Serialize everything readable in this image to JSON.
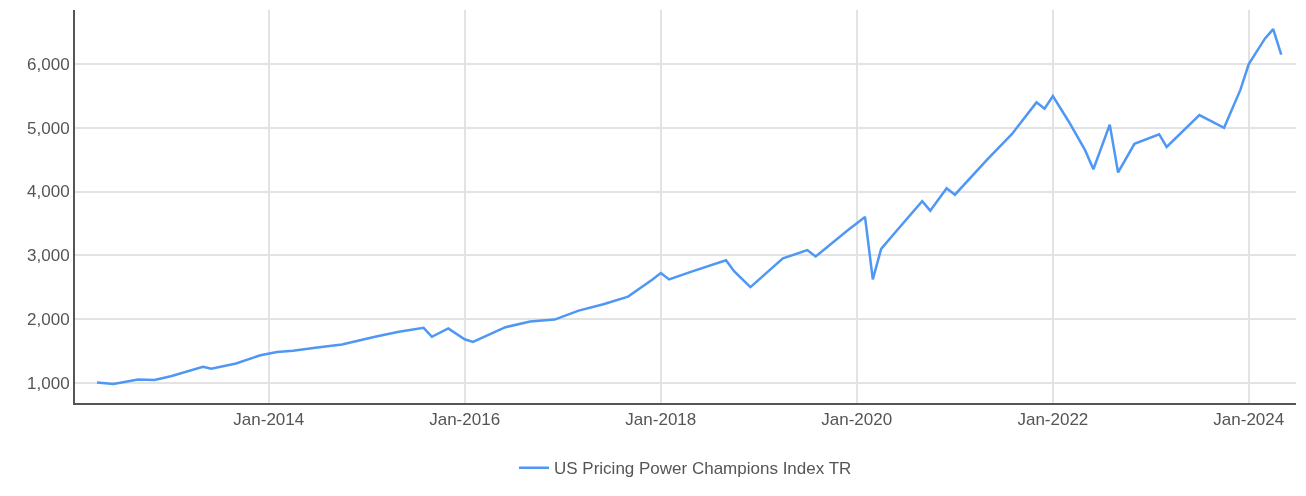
{
  "chart_data": {
    "type": "line",
    "x": [
      "2012-04",
      "2012-06",
      "2012-09",
      "2012-11",
      "2013-01",
      "2013-05",
      "2013-06",
      "2013-09",
      "2013-12",
      "2014-02",
      "2014-04",
      "2014-07",
      "2014-10",
      "2015-02",
      "2015-05",
      "2015-08",
      "2015-09",
      "2015-11",
      "2016-01",
      "2016-02",
      "2016-06",
      "2016-09",
      "2016-12",
      "2017-03",
      "2017-06",
      "2017-09",
      "2017-12",
      "2018-01",
      "2018-02",
      "2018-05",
      "2018-09",
      "2018-10",
      "2018-12",
      "2019-04",
      "2019-07",
      "2019-08",
      "2019-12",
      "2020-02",
      "2020-03",
      "2020-04",
      "2020-06",
      "2020-09",
      "2020-10",
      "2020-12",
      "2021-01",
      "2021-05",
      "2021-08",
      "2021-11",
      "2021-12",
      "2022-01",
      "2022-03",
      "2022-05",
      "2022-06",
      "2022-08",
      "2022-09",
      "2022-11",
      "2023-02",
      "2023-03",
      "2023-07",
      "2023-10",
      "2023-12",
      "2024-01",
      "2024-03",
      "2024-04",
      "2024-05"
    ],
    "series": [
      {
        "name": "US Pricing Power Champions Index TR",
        "color": "#4e97f5",
        "values": [
          1000,
          980,
          1050,
          1040,
          1100,
          1250,
          1220,
          1300,
          1430,
          1480,
          1500,
          1550,
          1600,
          1720,
          1800,
          1860,
          1720,
          1850,
          1680,
          1640,
          1870,
          1960,
          1990,
          2130,
          2230,
          2350,
          2620,
          2720,
          2620,
          2750,
          2920,
          2750,
          2500,
          2950,
          3080,
          2980,
          3400,
          3600,
          2620,
          3100,
          3400,
          3850,
          3700,
          4050,
          3950,
          4500,
          4900,
          5400,
          5300,
          5500,
          5100,
          4650,
          4350,
          5050,
          4300,
          4750,
          4900,
          4700,
          5200,
          5000,
          5600,
          6000,
          6400,
          6550,
          6150
        ]
      }
    ],
    "xlim": [
      "2012-01-10",
      "2024-06-25"
    ],
    "xticks": [
      {
        "value": "2014-01",
        "label": "Jan-2014"
      },
      {
        "value": "2016-01",
        "label": "Jan-2016"
      },
      {
        "value": "2018-01",
        "label": "Jan-2018"
      },
      {
        "value": "2020-01",
        "label": "Jan-2020"
      },
      {
        "value": "2022-01",
        "label": "Jan-2022"
      },
      {
        "value": "2024-01",
        "label": "Jan-2024"
      }
    ],
    "ylim": [
      680,
      6850
    ],
    "yticks": [
      {
        "value": 1000,
        "label": "1,000"
      },
      {
        "value": 2000,
        "label": "2,000"
      },
      {
        "value": 3000,
        "label": "3,000"
      },
      {
        "value": 4000,
        "label": "4,000"
      },
      {
        "value": 5000,
        "label": "5,000"
      },
      {
        "value": 6000,
        "label": "6,000"
      }
    ],
    "grid": true,
    "legend": "bottom",
    "marker": "none",
    "line_style": "solid"
  }
}
